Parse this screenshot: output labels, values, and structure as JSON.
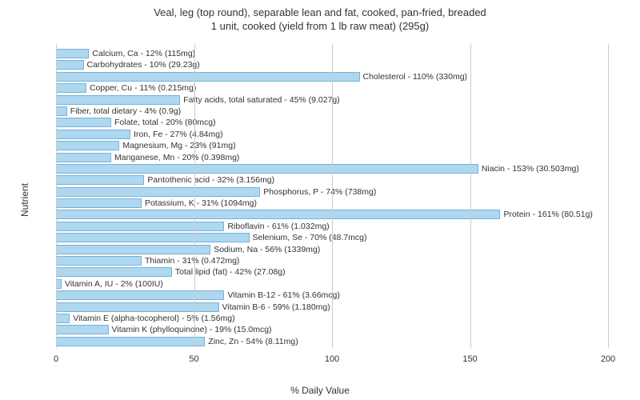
{
  "chart": {
    "type": "bar-horizontal",
    "title_line1": "Veal, leg (top round), separable lean and fat, cooked, pan-fried, breaded",
    "title_line2": "1 unit, cooked (yield from 1 lb raw meat) (295g)",
    "title_fontsize": 13,
    "x_axis_label": "% Daily Value",
    "y_axis_label": "Nutrient",
    "label_fontsize": 12,
    "xlim": [
      0,
      200
    ],
    "xticks": [
      0,
      50,
      100,
      150,
      200
    ],
    "bar_color": "#add8f0",
    "bar_border_color": "#7ab0d8",
    "grid_color": "#cccccc",
    "background_color": "#ffffff",
    "text_color": "#333333",
    "bar_label_fontsize": 10.5,
    "nutrients": [
      {
        "label": "Calcium, Ca - 12% (115mg)",
        "value": 12
      },
      {
        "label": "Carbohydrates - 10% (29.23g)",
        "value": 10
      },
      {
        "label": "Cholesterol - 110% (330mg)",
        "value": 110
      },
      {
        "label": "Copper, Cu - 11% (0.215mg)",
        "value": 11
      },
      {
        "label": "Fatty acids, total saturated - 45% (9.027g)",
        "value": 45
      },
      {
        "label": "Fiber, total dietary - 4% (0.9g)",
        "value": 4
      },
      {
        "label": "Folate, total - 20% (80mcg)",
        "value": 20
      },
      {
        "label": "Iron, Fe - 27% (4.84mg)",
        "value": 27
      },
      {
        "label": "Magnesium, Mg - 23% (91mg)",
        "value": 23
      },
      {
        "label": "Manganese, Mn - 20% (0.398mg)",
        "value": 20
      },
      {
        "label": "Niacin - 153% (30.503mg)",
        "value": 153
      },
      {
        "label": "Pantothenic acid - 32% (3.156mg)",
        "value": 32
      },
      {
        "label": "Phosphorus, P - 74% (738mg)",
        "value": 74
      },
      {
        "label": "Potassium, K - 31% (1094mg)",
        "value": 31
      },
      {
        "label": "Protein - 161% (80.51g)",
        "value": 161
      },
      {
        "label": "Riboflavin - 61% (1.032mg)",
        "value": 61
      },
      {
        "label": "Selenium, Se - 70% (48.7mcg)",
        "value": 70
      },
      {
        "label": "Sodium, Na - 56% (1339mg)",
        "value": 56
      },
      {
        "label": "Thiamin - 31% (0.472mg)",
        "value": 31
      },
      {
        "label": "Total lipid (fat) - 42% (27.08g)",
        "value": 42
      },
      {
        "label": "Vitamin A, IU - 2% (100IU)",
        "value": 2
      },
      {
        "label": "Vitamin B-12 - 61% (3.66mcg)",
        "value": 61
      },
      {
        "label": "Vitamin B-6 - 59% (1.180mg)",
        "value": 59
      },
      {
        "label": "Vitamin E (alpha-tocopherol) - 5% (1.56mg)",
        "value": 5
      },
      {
        "label": "Vitamin K (phylloquinone) - 19% (15.0mcg)",
        "value": 19
      },
      {
        "label": "Zinc, Zn - 54% (8.11mg)",
        "value": 54
      }
    ]
  }
}
